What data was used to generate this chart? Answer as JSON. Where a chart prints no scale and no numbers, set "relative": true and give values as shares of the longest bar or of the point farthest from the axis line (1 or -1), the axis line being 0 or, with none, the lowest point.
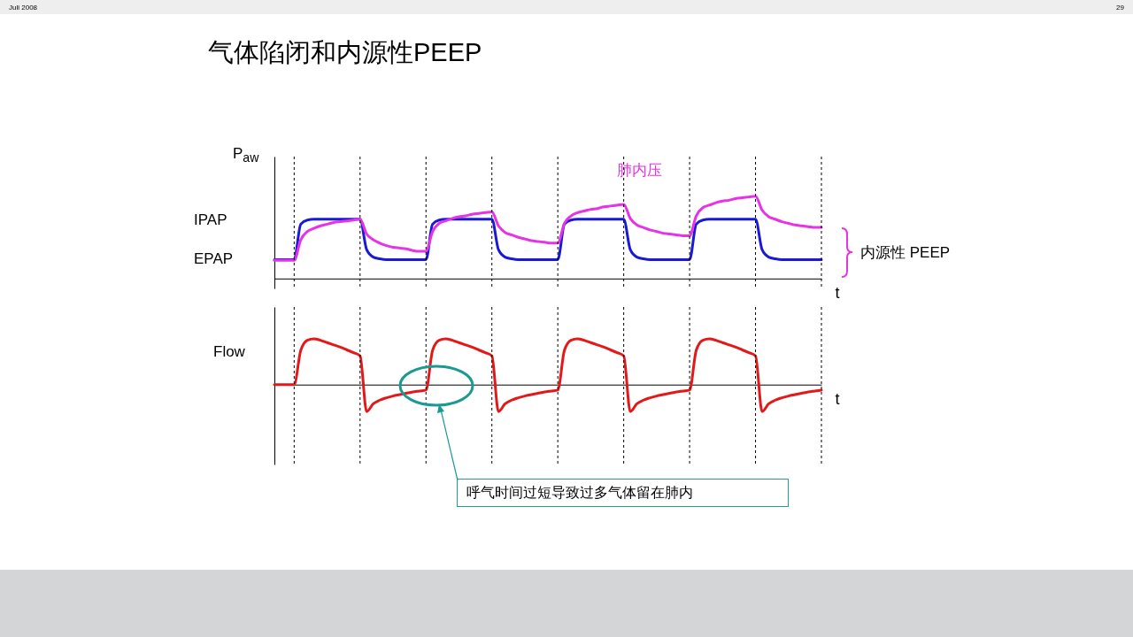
{
  "chart_data": [
    {
      "type": "line",
      "title": "气体陷闭和内源性PEEP",
      "ylabel": "P$_{aw}$",
      "xlabel": "t",
      "relative": true,
      "legend": false,
      "grid": "x",
      "marker": "none",
      "line_style": "solid",
      "categories": [
        null,
        null,
        null,
        null,
        null,
        null,
        null,
        null,
        null,
        null,
        null,
        null,
        null,
        null,
        null,
        null,
        null,
        null,
        null,
        null,
        null,
        null,
        null,
        null,
        null,
        null,
        null,
        null,
        null,
        null,
        null,
        null,
        null,
        null,
        null,
        null,
        null,
        null,
        null,
        null,
        null,
        null,
        null,
        null,
        null,
        null,
        null,
        null,
        null,
        null,
        null,
        null,
        null,
        null,
        null,
        null,
        null,
        null,
        null,
        null,
        null,
        null,
        null,
        null,
        null,
        null,
        null,
        null,
        null,
        null,
        null,
        null,
        null,
        null,
        null,
        null,
        null,
        null,
        null,
        null,
        null,
        null,
        null,
        null
      ],
      "series": [
        {
          "color": "#1a1ad6",
          "values": [
            0.23,
            0.23,
            0.23,
            0.23,
            0.66,
            0.71,
            0.72,
            0.72,
            0.72,
            0.72,
            0.72,
            0.72,
            0.72,
            0.72,
            0.35,
            0.26,
            0.24,
            0.23,
            0.23,
            0.23,
            0.23,
            0.23,
            0.23,
            0.23,
            0.66,
            0.71,
            0.72,
            0.72,
            0.72,
            0.72,
            0.72,
            0.72,
            0.72,
            0.72,
            0.35,
            0.26,
            0.24,
            0.23,
            0.23,
            0.23,
            0.23,
            0.23,
            0.23,
            0.23,
            0.66,
            0.71,
            0.72,
            0.72,
            0.72,
            0.72,
            0.72,
            0.72,
            0.72,
            0.72,
            0.35,
            0.26,
            0.24,
            0.23,
            0.23,
            0.23,
            0.23,
            0.23,
            0.23,
            0.23,
            0.66,
            0.71,
            0.72,
            0.72,
            0.72,
            0.72,
            0.72,
            0.72,
            0.72,
            0.72,
            0.35,
            0.26,
            0.24,
            0.23,
            0.23,
            0.23,
            0.23,
            0.23,
            0.23,
            0.23
          ]
        },
        {
          "name": "肺内压",
          "color": "#e633e6",
          "values": [
            0.22,
            0.22,
            0.22,
            0.22,
            0.47,
            0.57,
            0.61,
            0.64,
            0.66,
            0.68,
            0.69,
            0.7,
            0.71,
            0.72,
            0.54,
            0.47,
            0.43,
            0.4,
            0.38,
            0.37,
            0.36,
            0.34,
            0.33,
            0.33,
            0.57,
            0.67,
            0.7,
            0.73,
            0.75,
            0.76,
            0.78,
            0.79,
            0.8,
            0.81,
            0.64,
            0.56,
            0.53,
            0.5,
            0.48,
            0.46,
            0.45,
            0.44,
            0.43,
            0.43,
            0.67,
            0.76,
            0.8,
            0.82,
            0.84,
            0.85,
            0.87,
            0.88,
            0.89,
            0.9,
            0.73,
            0.65,
            0.62,
            0.59,
            0.57,
            0.55,
            0.54,
            0.53,
            0.52,
            0.52,
            0.76,
            0.86,
            0.89,
            0.92,
            0.94,
            0.95,
            0.97,
            0.98,
            0.99,
            1.0,
            0.83,
            0.75,
            0.72,
            0.69,
            0.67,
            0.65,
            0.64,
            0.63,
            0.62,
            0.62
          ]
        }
      ],
      "annotations": [
        "IPAP",
        "EPAP",
        "内源性 PEEP",
        "Juli 2008",
        "29"
      ]
    },
    {
      "type": "line",
      "ylabel": "Flow",
      "xlabel": "t",
      "relative": true,
      "legend": false,
      "grid": "x",
      "marker": "none",
      "line_style": "solid",
      "categories": [
        null,
        null,
        null,
        null,
        null,
        null,
        null,
        null,
        null,
        null,
        null,
        null,
        null,
        null,
        null,
        null,
        null,
        null,
        null,
        null,
        null,
        null,
        null,
        null,
        null,
        null,
        null,
        null,
        null,
        null,
        null,
        null,
        null,
        null,
        null,
        null,
        null,
        null,
        null,
        null,
        null,
        null,
        null,
        null,
        null,
        null,
        null,
        null,
        null,
        null,
        null,
        null,
        null,
        null,
        null,
        null,
        null,
        null,
        null,
        null,
        null,
        null,
        null,
        null,
        null,
        null,
        null,
        null,
        null,
        null,
        null,
        null,
        null,
        null,
        null,
        null,
        null,
        null,
        null,
        null,
        null,
        null,
        null,
        null
      ],
      "series": [
        {
          "color": "#e31919",
          "values": [
            0,
            0,
            0,
            0,
            0.75,
            0.97,
            1,
            0.97,
            0.92,
            0.87,
            0.82,
            0.76,
            0.7,
            0.63,
            -0.59,
            -0.42,
            -0.34,
            -0.29,
            -0.25,
            -0.22,
            -0.19,
            -0.16,
            -0.14,
            -0.12,
            0.75,
            0.97,
            1,
            0.97,
            0.92,
            0.87,
            0.82,
            0.76,
            0.7,
            0.63,
            -0.59,
            -0.42,
            -0.34,
            -0.29,
            -0.25,
            -0.22,
            -0.19,
            -0.16,
            -0.14,
            -0.12,
            0.75,
            0.97,
            1,
            0.97,
            0.92,
            0.87,
            0.82,
            0.76,
            0.7,
            0.63,
            -0.59,
            -0.42,
            -0.34,
            -0.29,
            -0.25,
            -0.22,
            -0.19,
            -0.16,
            -0.14,
            -0.12,
            0.75,
            0.97,
            1,
            0.97,
            0.92,
            0.87,
            0.82,
            0.76,
            0.7,
            0.63,
            -0.59,
            -0.42,
            -0.34,
            -0.29,
            -0.25,
            -0.22,
            -0.19,
            -0.16,
            -0.14,
            -0.12
          ]
        }
      ],
      "annotations": [
        "呼气时间过短导致过多气体留在肺内"
      ]
    }
  ]
}
